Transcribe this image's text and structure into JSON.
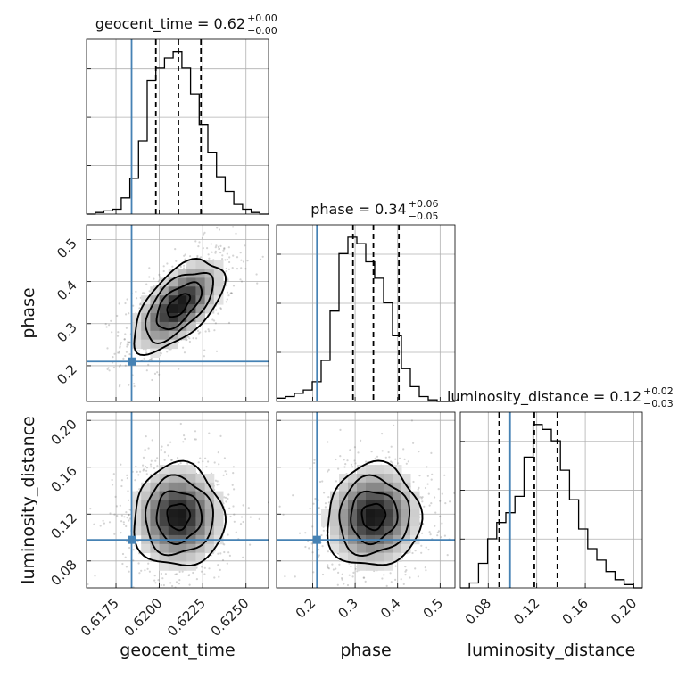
{
  "chart_data": {
    "type": "corner",
    "parameters": [
      "geocent_time",
      "phase",
      "luminosity_distance"
    ],
    "titles": [
      {
        "text": "geocent_time = 0.62",
        "plus": "+0.00",
        "minus": "−0.00"
      },
      {
        "text": "phase = 0.34",
        "plus": "+0.06",
        "minus": "−0.05"
      },
      {
        "text": "luminosity_distance = 0.12",
        "plus": "+0.02",
        "minus": "−0.03"
      }
    ],
    "axis_labels": {
      "x": [
        "geocent_time",
        "phase",
        "luminosity_distance"
      ],
      "y": [
        "phase",
        "luminosity_distance"
      ]
    },
    "ranges": {
      "geocent_time": [
        0.6158,
        0.6263
      ],
      "phase": [
        0.115,
        0.535
      ],
      "luminosity_distance": [
        0.057,
        0.207
      ]
    },
    "ticks": {
      "geocent_time": {
        "values": [
          0.6175,
          0.62,
          0.6225,
          0.625
        ],
        "labels": [
          "0.6175",
          "0.6200",
          "0.6225",
          "0.6250"
        ]
      },
      "phase": {
        "values": [
          0.2,
          0.3,
          0.4,
          0.5
        ],
        "labels": [
          "0.2",
          "0.3",
          "0.4",
          "0.5"
        ]
      },
      "luminosity_distance": {
        "values": [
          0.08,
          0.12,
          0.16,
          0.2
        ],
        "labels": [
          "0.08",
          "0.12",
          "0.16",
          "0.20"
        ]
      }
    },
    "truths": {
      "geocent_time": 0.6184,
      "phase": 0.21,
      "luminosity_distance": 0.098
    },
    "truth_color": "#4682b4",
    "quantiles": {
      "geocent_time": [
        0.6198,
        0.6211,
        0.6224
      ],
      "phase": [
        0.295,
        0.343,
        0.403
      ],
      "luminosity_distance": [
        0.089,
        0.118,
        0.137
      ]
    },
    "marginals": {
      "geocent_time": {
        "edges": [
          0.6158,
          0.6263
        ],
        "counts": [
          0,
          1,
          2,
          3,
          10,
          22,
          45,
          82,
          90,
          96,
          100,
          90,
          74,
          55,
          38,
          23,
          14,
          6,
          3,
          1,
          0
        ]
      },
      "phase": {
        "edges": [
          0.115,
          0.535
        ],
        "counts": [
          2,
          3,
          5,
          7,
          12,
          25,
          55,
          90,
          100,
          96,
          85,
          75,
          60,
          40,
          20,
          9,
          3,
          1,
          0,
          0
        ]
      },
      "luminosity_distance": {
        "edges": [
          0.057,
          0.207
        ],
        "counts": [
          0,
          3,
          15,
          30,
          40,
          46,
          56,
          80,
          100,
          97,
          90,
          72,
          54,
          36,
          24,
          17,
          10,
          5,
          2,
          0
        ]
      }
    },
    "pair_means": {
      "phase_vs_geocent_time": {
        "mean": [
          0.6211,
          0.343
        ],
        "sd": [
          0.0013,
          0.055
        ],
        "rho": 0.6
      },
      "luminosity_distance_vs_geocent_time": {
        "mean": [
          0.6211,
          0.118
        ],
        "sd": [
          0.0013,
          0.022
        ],
        "rho": 0.0
      },
      "luminosity_distance_vs_phase": {
        "mean": [
          0.343,
          0.118
        ],
        "sd": [
          0.055,
          0.022
        ],
        "rho": 0.05
      }
    },
    "grid": true
  }
}
